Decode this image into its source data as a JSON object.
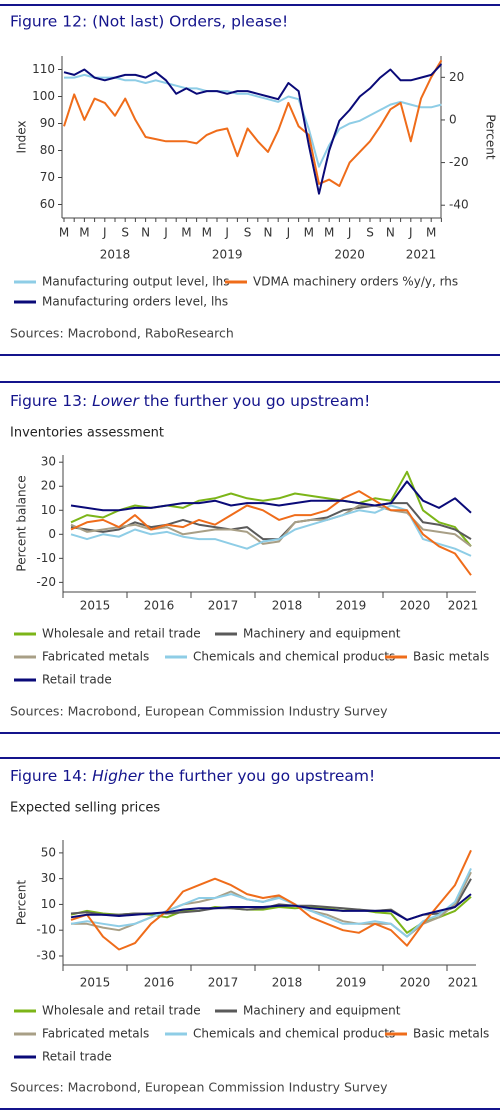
{
  "chart_data": [
    {
      "type": "line",
      "title": "Figure 12: (Not last) Orders, please!",
      "ylabel": "Index",
      "y2label": "Percent",
      "categories": [
        "M",
        null,
        "M",
        null,
        "J",
        null,
        "S",
        null,
        "N",
        null,
        "J",
        null,
        "M",
        null,
        "M",
        null,
        "J",
        null,
        "S",
        null,
        "N",
        null,
        "J",
        null,
        "M",
        null,
        "M",
        null,
        "J",
        null,
        "S",
        null,
        "N",
        null,
        "J",
        null,
        "M",
        null
      ],
      "year_row": [
        null,
        null,
        null,
        null,
        null,
        "2018",
        null,
        null,
        null,
        null,
        null,
        null,
        null,
        null,
        null,
        null,
        "2019",
        null,
        null,
        null,
        null,
        null,
        null,
        null,
        null,
        null,
        null,
        null,
        "2020",
        null,
        null,
        null,
        null,
        null,
        null,
        "2021",
        null,
        null
      ],
      "ylim": [
        55,
        115
      ],
      "yticks": [
        60,
        70,
        80,
        90,
        100,
        110
      ],
      "y2lim": [
        -46,
        30
      ],
      "y2ticks": [
        -40,
        -20,
        0,
        20
      ],
      "series": [
        {
          "name": "Manufacturing output level, lhs",
          "color": "#8ecde6",
          "values": [
            107,
            107,
            108,
            107,
            107,
            107,
            106,
            106,
            105,
            106,
            105,
            104,
            103,
            103,
            102,
            102,
            102,
            101,
            101,
            100,
            99,
            98,
            100,
            99,
            88,
            74,
            82,
            88,
            90,
            91,
            93,
            95,
            97,
            98,
            97,
            96,
            96,
            97
          ]
        },
        {
          "name": "VDMA machinery orders %y/y, rhs",
          "color": "#ef6c1a",
          "axis": "y2",
          "values": [
            -3,
            12,
            0,
            10,
            8,
            2,
            10,
            0,
            -8,
            -9,
            -10,
            -10,
            -10,
            -11,
            -7,
            -5,
            -4,
            -17,
            -4,
            -10,
            -15,
            -5,
            8,
            -3,
            -7,
            -30,
            -28,
            -31,
            -20,
            -15,
            -10,
            -3,
            5,
            8,
            -10,
            10,
            20,
            28
          ]
        },
        {
          "name": "Manufacturing orders level, lhs",
          "color": "#0a0a78",
          "values": [
            109,
            108,
            110,
            107,
            106,
            107,
            108,
            108,
            107,
            109,
            106,
            101,
            103,
            101,
            102,
            102,
            101,
            102,
            102,
            101,
            100,
            99,
            105,
            102,
            82,
            64,
            80,
            91,
            95,
            100,
            103,
            107,
            110,
            106,
            106,
            107,
            108,
            112
          ]
        }
      ],
      "source": "Sources: Macrobond, RaboResearch"
    },
    {
      "type": "line",
      "title": [
        "Figure 13: ",
        "Lower",
        " the further you go upstream!"
      ],
      "subtitle": "Inventories assessment",
      "ylabel": "Percent balance",
      "categories": [
        null,
        null,
        "2015",
        null,
        null,
        null,
        "2016",
        null,
        null,
        null,
        "2017",
        null,
        null,
        null,
        "2018",
        null,
        null,
        null,
        "2019",
        null,
        null,
        null,
        "2020",
        null,
        null,
        "2021"
      ],
      "ylim": [
        -24,
        33
      ],
      "yticks": [
        -20,
        -10,
        0,
        10,
        20,
        30
      ],
      "series": [
        {
          "name": "Wholesale and retail trade",
          "color": "#7cb518",
          "values": [
            5,
            8,
            7,
            10,
            12,
            11,
            12,
            11,
            14,
            15,
            17,
            15,
            14,
            15,
            17,
            16,
            15,
            14,
            13,
            15,
            14,
            26,
            10,
            5,
            3,
            -5
          ]
        },
        {
          "name": "Machinery and equipment",
          "color": "#5a5a5a",
          "values": [
            3,
            2,
            1,
            2,
            5,
            3,
            4,
            6,
            4,
            3,
            2,
            3,
            -2,
            -2,
            5,
            6,
            7,
            10,
            11,
            12,
            13,
            13,
            5,
            4,
            2,
            -2
          ]
        },
        {
          "name": "Fabricated metals",
          "color": "#a89f86",
          "values": [
            4,
            1,
            2,
            3,
            4,
            2,
            3,
            0,
            1,
            2,
            2,
            1,
            -4,
            -3,
            5,
            6,
            6,
            8,
            12,
            12,
            10,
            9,
            2,
            1,
            0,
            -5
          ]
        },
        {
          "name": "Chemicals and chemical products",
          "color": "#8ecde6",
          "values": [
            0,
            -2,
            0,
            -1,
            2,
            0,
            1,
            -1,
            -2,
            -2,
            -4,
            -6,
            -3,
            -2,
            2,
            4,
            6,
            8,
            10,
            9,
            12,
            10,
            -2,
            -4,
            -6,
            -9
          ]
        },
        {
          "name": "Basic metals",
          "color": "#ef6c1a",
          "values": [
            2,
            5,
            6,
            3,
            8,
            2,
            4,
            3,
            6,
            4,
            8,
            12,
            10,
            6,
            8,
            8,
            10,
            15,
            18,
            14,
            10,
            10,
            0,
            -5,
            -8,
            -17
          ]
        },
        {
          "name": "Retail trade",
          "color": "#0a0a78",
          "values": [
            12,
            11,
            10,
            10,
            11,
            11,
            12,
            13,
            13,
            14,
            12,
            13,
            13,
            12,
            13,
            14,
            14,
            14,
            13,
            12,
            13,
            22,
            14,
            11,
            15,
            9
          ]
        }
      ],
      "source": "Sources: Macrobond, European Commission Industry Survey"
    },
    {
      "type": "line",
      "title": [
        "Figure 14: ",
        "Higher",
        " the further you go upstream!"
      ],
      "subtitle": "Expected selling prices",
      "ylabel": "Percent",
      "categories": [
        null,
        null,
        "2015",
        null,
        null,
        null,
        "2016",
        null,
        null,
        null,
        "2017",
        null,
        null,
        null,
        "2018",
        null,
        null,
        null,
        "2019",
        null,
        null,
        null,
        "2020",
        null,
        null,
        "2021"
      ],
      "ylim": [
        -37,
        60
      ],
      "yticks": [
        -30,
        -10,
        10,
        30,
        50
      ],
      "series": [
        {
          "name": "Wholesale and retail trade",
          "color": "#7cb518",
          "values": [
            2,
            5,
            3,
            2,
            3,
            2,
            0,
            5,
            5,
            8,
            7,
            6,
            6,
            8,
            7,
            8,
            7,
            5,
            6,
            4,
            3,
            -12,
            -4,
            0,
            5,
            16
          ]
        },
        {
          "name": "Machinery and equipment",
          "color": "#5a5a5a",
          "values": [
            3,
            4,
            2,
            2,
            3,
            3,
            3,
            4,
            5,
            7,
            7,
            6,
            7,
            10,
            9,
            9,
            8,
            7,
            6,
            5,
            6,
            -2,
            2,
            3,
            8,
            30
          ]
        },
        {
          "name": "Fabricated metals",
          "color": "#a89f86",
          "values": [
            -5,
            -5,
            -8,
            -10,
            -5,
            0,
            5,
            10,
            12,
            15,
            20,
            14,
            12,
            16,
            10,
            5,
            2,
            -3,
            -5,
            -5,
            -5,
            -15,
            -5,
            0,
            10,
            35
          ]
        },
        {
          "name": "Chemicals and chemical products",
          "color": "#8ecde6",
          "values": [
            -5,
            -3,
            -5,
            -7,
            -5,
            0,
            5,
            10,
            15,
            15,
            18,
            14,
            12,
            15,
            10,
            5,
            0,
            -5,
            -5,
            -3,
            -5,
            -15,
            -3,
            2,
            12,
            38
          ]
        },
        {
          "name": "Basic metals",
          "color": "#ef6c1a",
          "values": [
            -2,
            2,
            -15,
            -25,
            -20,
            -5,
            5,
            20,
            25,
            30,
            25,
            18,
            15,
            17,
            10,
            0,
            -5,
            -10,
            -12,
            -5,
            -10,
            -22,
            -5,
            10,
            25,
            52
          ]
        },
        {
          "name": "Retail trade",
          "color": "#0a0a78",
          "values": [
            0,
            2,
            2,
            1,
            2,
            3,
            4,
            6,
            7,
            7,
            8,
            8,
            8,
            9,
            9,
            7,
            6,
            5,
            5,
            5,
            5,
            -2,
            2,
            5,
            8,
            18
          ]
        }
      ],
      "source": "Sources: Macrobond, European Commission Industry Survey"
    }
  ]
}
